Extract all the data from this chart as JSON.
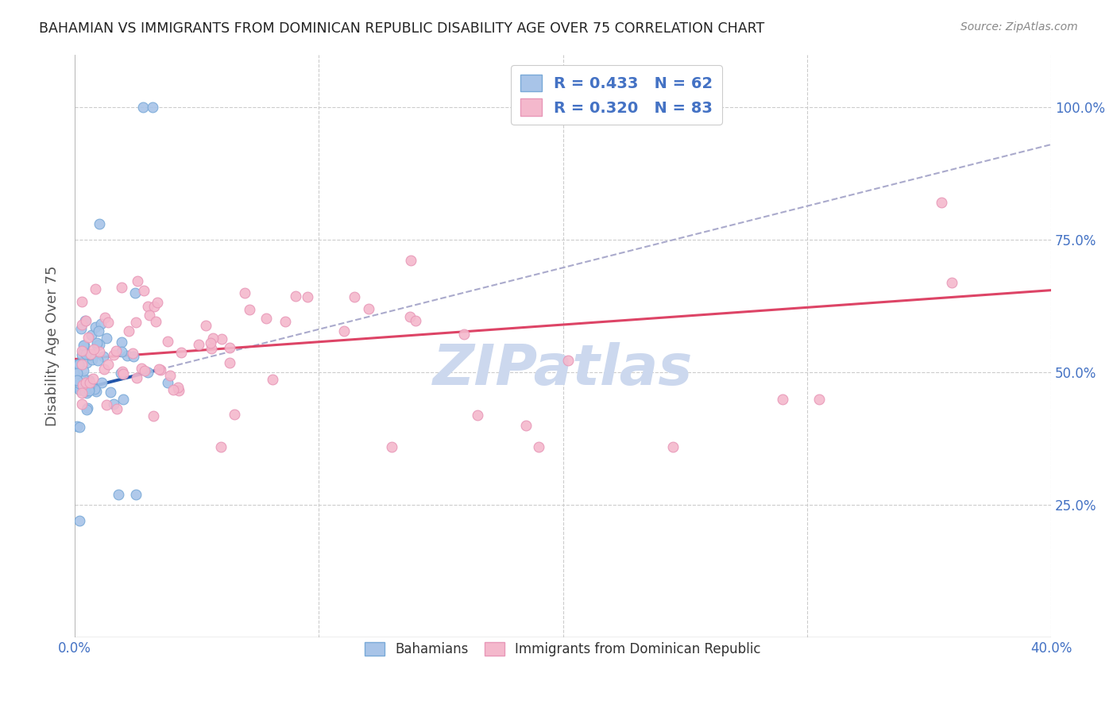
{
  "title": "BAHAMIAN VS IMMIGRANTS FROM DOMINICAN REPUBLIC DISABILITY AGE OVER 75 CORRELATION CHART",
  "source": "Source: ZipAtlas.com",
  "ylabel": "Disability Age Over 75",
  "legend_r1": "R = 0.433",
  "legend_n1": "N = 62",
  "legend_r2": "R = 0.320",
  "legend_n2": "N = 83",
  "legend_label1": "Bahamians",
  "legend_label2": "Immigrants from Dominican Republic",
  "blue_scatter_color": "#a8c4e8",
  "blue_scatter_edge": "#7aaad8",
  "pink_scatter_color": "#f4b8cc",
  "pink_scatter_edge": "#e898b8",
  "blue_trend_color": "#2255aa",
  "pink_trend_color": "#dd4466",
  "gray_dash_color": "#aaaacc",
  "grid_color": "#cccccc",
  "text_color": "#4472c4",
  "title_color": "#222222",
  "source_color": "#888888",
  "watermark_color": "#ccd8ee",
  "xlim": [
    0.0,
    0.4
  ],
  "ylim": [
    0.0,
    1.1
  ],
  "figsize": [
    14.06,
    8.92
  ],
  "dpi": 100,
  "blue_trend_x0": 0.0,
  "blue_trend_y0": 0.465,
  "blue_trend_x1": 0.4,
  "blue_trend_y1": 0.93,
  "pink_trend_x0": 0.0,
  "pink_trend_y0": 0.525,
  "pink_trend_x1": 0.4,
  "pink_trend_y1": 0.655
}
